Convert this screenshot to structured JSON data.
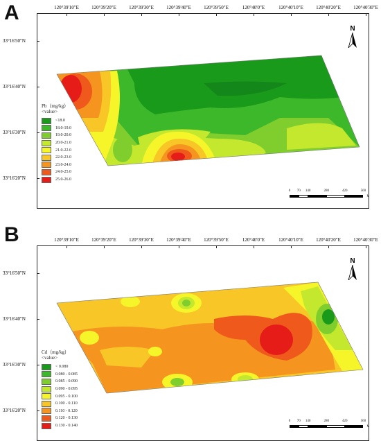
{
  "panels": [
    {
      "letter": "A",
      "legend_title": "Pb（mg/kg）",
      "legend_sub": "<value>",
      "legend": [
        {
          "label": "<18.0",
          "color": "#1a9a1a"
        },
        {
          "label": "18.0-19.0",
          "color": "#3db82a"
        },
        {
          "label": "19.0-20.0",
          "color": "#7fce2e"
        },
        {
          "label": "20.0-21.0",
          "color": "#c3e82e"
        },
        {
          "label": "21.0-22.0",
          "color": "#f5f52a"
        },
        {
          "label": "22.0-23.0",
          "color": "#f8c626"
        },
        {
          "label": "23.0-24.0",
          "color": "#f69420"
        },
        {
          "label": "24.0-25.0",
          "color": "#ef5a1c"
        },
        {
          "label": "25.0-26.0",
          "color": "#e61c18"
        }
      ]
    },
    {
      "letter": "B",
      "legend_title": "Cd（mg/kg）",
      "legend_sub": "<value>",
      "legend": [
        {
          "label": "< 0.080",
          "color": "#1a9a1a"
        },
        {
          "label": "0.080 - 0.085",
          "color": "#3db82a"
        },
        {
          "label": "0.085 - 0.090",
          "color": "#7fce2e"
        },
        {
          "label": "0.090 - 0.095",
          "color": "#c3e82e"
        },
        {
          "label": "0.095 - 0.100",
          "color": "#f5f52a"
        },
        {
          "label": "0.100 - 0.110",
          "color": "#f8c626"
        },
        {
          "label": "0.110 - 0.120",
          "color": "#f69420"
        },
        {
          "label": "0.120 - 0.130",
          "color": "#ef5a1c"
        },
        {
          "label": "0.130 - 0.140",
          "color": "#e61c18"
        }
      ]
    }
  ],
  "lon_labels": [
    "120°39'10\"E",
    "120°39'20\"E",
    "120°39'30\"E",
    "120°39'40\"E",
    "120°39'50\"E",
    "120°40'0\"E",
    "120°40'10\"E",
    "120°40'20\"E",
    "120°40'30\"E"
  ],
  "lat_labels": [
    "33°16'50\"N",
    "33°16'40\"N",
    "33°16'30\"N",
    "33°16'20\"N"
  ],
  "north_label": "N",
  "scale_ticks": [
    "0",
    "70",
    "140",
    "280",
    "420",
    "560"
  ],
  "scale_unit": "Meters"
}
